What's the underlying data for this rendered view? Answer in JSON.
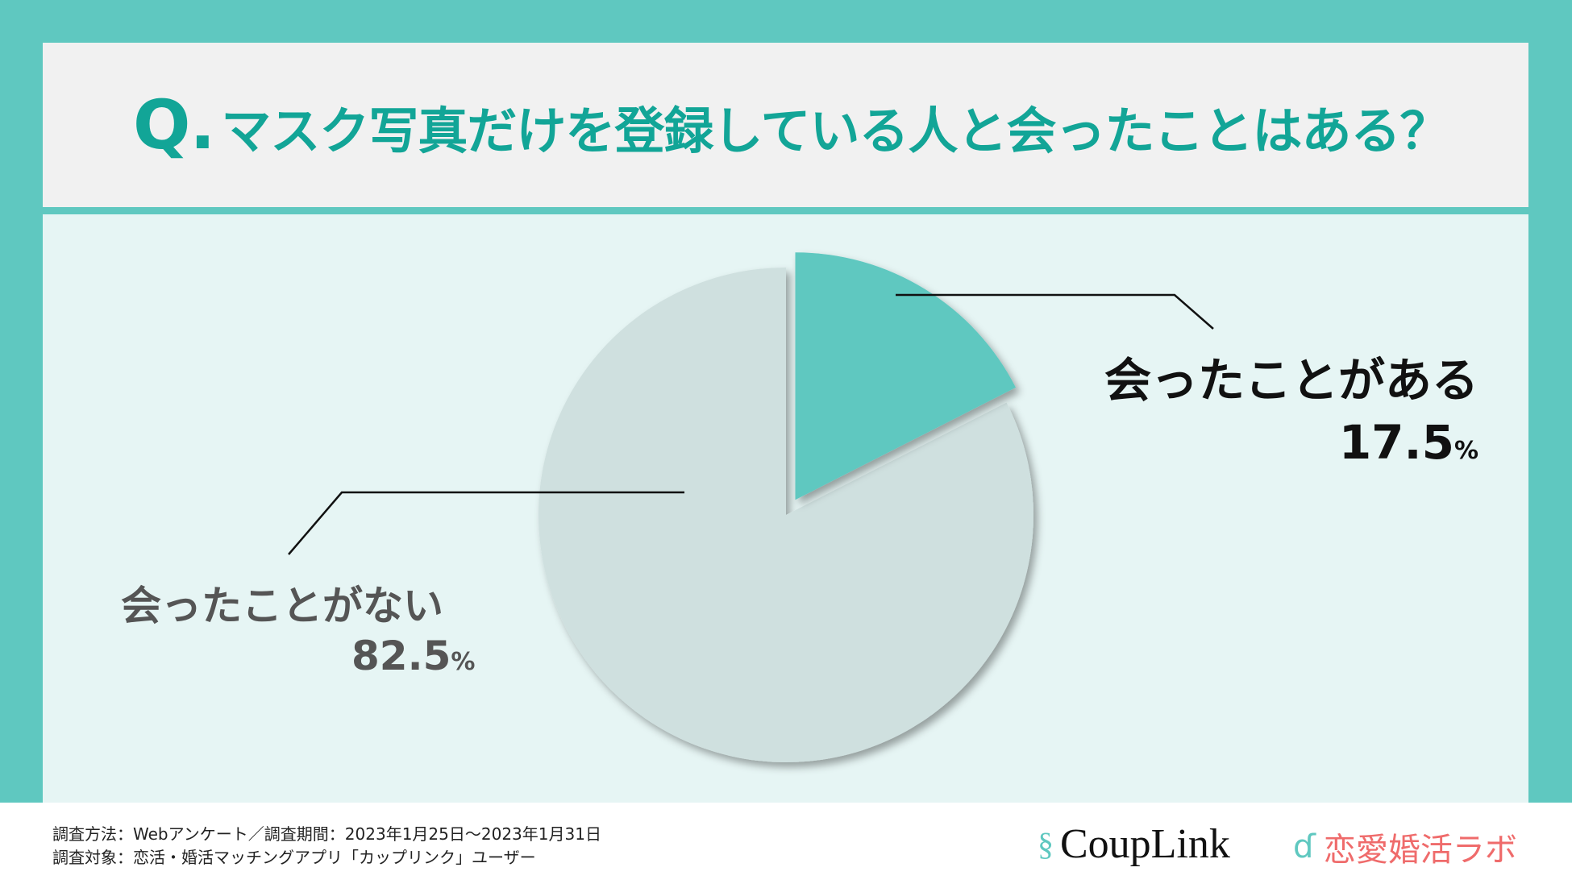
{
  "title": {
    "prefix": "Q.",
    "text": "マスク写真だけを登録している人と会ったことはある？"
  },
  "colors": {
    "background": "#5fc8c0",
    "title": "#12a597",
    "slice_yes": "#5ec8c0",
    "slice_no": "#cfe0df"
  },
  "chart_data": {
    "type": "pie",
    "title": "マスク写真だけを登録している人と会ったことはある？",
    "categories": [
      "会ったことがある",
      "会ったことがない"
    ],
    "values": [
      17.5,
      82.5
    ],
    "unit": "%",
    "exploded": [
      "会ったことがある"
    ]
  },
  "labels": {
    "yes": {
      "label": "会ったことがある",
      "value": "17.5",
      "unit": "%"
    },
    "no": {
      "label": "会ったことがない",
      "value": "82.5",
      "unit": "%"
    }
  },
  "footer": {
    "method": "調査方法：Webアンケート／調査期間：2023年1月25日〜2023年1月31日",
    "target": "調査対象：恋活・婚活マッチングアプリ「カップリンク」ユーザー"
  },
  "logos": {
    "couplink": "CoupLink",
    "lab": "恋愛婚活ラボ"
  }
}
